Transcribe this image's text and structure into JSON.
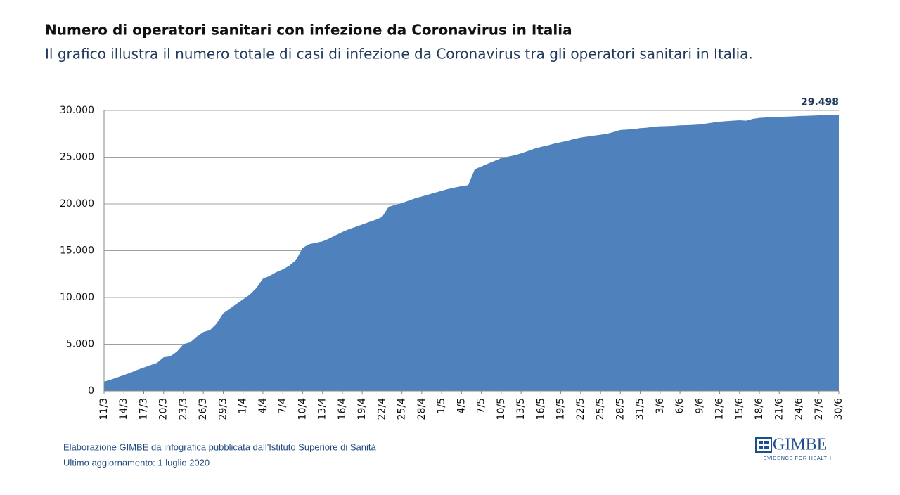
{
  "chart_data": {
    "type": "area",
    "title": "Numero di operatori sanitari con infezione da Coronavirus in Italia",
    "subtitle": "Il grafico illustra il numero totale di casi di infezione da Coronavirus tra gli operatori sanitari in Italia.",
    "categories": [
      "11/3",
      null,
      null,
      "14/3",
      null,
      null,
      "17/3",
      null,
      null,
      "20/3",
      null,
      null,
      "23/3",
      null,
      null,
      "26/3",
      null,
      null,
      "29/3",
      null,
      null,
      "1/4",
      null,
      null,
      "4/4",
      null,
      null,
      "7/4",
      null,
      null,
      "10/4",
      null,
      null,
      "13/4",
      null,
      null,
      "16/4",
      null,
      null,
      "19/4",
      null,
      null,
      "22/4",
      null,
      null,
      "25/4",
      null,
      null,
      "28/4",
      null,
      null,
      "1/5",
      null,
      null,
      "4/5",
      null,
      null,
      "7/5",
      null,
      null,
      "10/5",
      null,
      null,
      "13/5",
      null,
      null,
      "16/5",
      null,
      null,
      "19/5",
      null,
      null,
      "22/5",
      null,
      null,
      "25/5",
      null,
      null,
      "28/5",
      null,
      null,
      "31/5",
      null,
      null,
      "3/6",
      null,
      null,
      "6/6",
      null,
      null,
      "9/6",
      null,
      null,
      "12/6",
      null,
      null,
      "15/6",
      null,
      null,
      "18/6",
      null,
      null,
      "21/6",
      null,
      null,
      "24/6",
      null,
      null,
      "27/6",
      null,
      null,
      "30/6"
    ],
    "values": [
      1000,
      1200,
      1450,
      1700,
      1950,
      2250,
      2500,
      2750,
      3000,
      3600,
      3700,
      4200,
      5000,
      5200,
      5800,
      6300,
      6500,
      7200,
      8300,
      8800,
      9300,
      9800,
      10300,
      11000,
      12000,
      12300,
      12700,
      13000,
      13400,
      14000,
      15300,
      15700,
      15850,
      16000,
      16300,
      16650,
      17000,
      17300,
      17550,
      17800,
      18050,
      18300,
      18600,
      19700,
      19900,
      20100,
      20350,
      20600,
      20800,
      21000,
      21200,
      21400,
      21600,
      21750,
      21900,
      22000,
      23700,
      24000,
      24300,
      24600,
      24900,
      25050,
      25200,
      25400,
      25650,
      25900,
      26100,
      26250,
      26450,
      26600,
      26750,
      26950,
      27100,
      27200,
      27300,
      27400,
      27500,
      27700,
      27900,
      27950,
      28000,
      28100,
      28150,
      28250,
      28300,
      28320,
      28350,
      28400,
      28420,
      28450,
      28500,
      28600,
      28700,
      28800,
      28850,
      28900,
      28950,
      28900,
      29100,
      29200,
      29250,
      29280,
      29300,
      29330,
      29360,
      29400,
      29420,
      29450,
      29470,
      29480,
      29490,
      29498
    ],
    "value_labels": [
      null,
      null,
      null,
      null,
      null,
      null,
      null,
      null,
      null,
      null,
      null,
      null,
      null,
      null,
      null,
      null,
      null,
      null,
      null,
      null,
      null,
      null,
      null,
      null,
      null,
      null,
      null,
      null,
      null,
      null,
      null,
      null,
      null,
      null,
      null,
      null,
      null,
      null,
      null,
      null,
      null,
      null,
      null,
      null,
      null,
      null,
      null,
      null,
      null,
      null,
      null,
      null,
      null,
      null,
      null,
      null,
      null,
      null,
      null,
      null,
      null,
      null,
      null,
      null,
      null,
      null,
      null,
      null,
      null,
      null,
      null,
      null,
      null,
      null,
      null,
      null,
      null,
      null,
      null,
      null,
      null,
      null,
      null,
      null,
      null,
      null,
      null,
      null,
      null,
      null,
      null,
      null,
      null,
      null,
      null,
      null,
      null,
      null,
      null,
      null,
      null,
      null,
      null,
      null,
      null,
      null,
      null,
      null,
      null,
      null,
      null,
      "29.498"
    ],
    "color": "#4f81bd",
    "ylim": [
      0,
      30000
    ],
    "yticks": [
      0,
      {
        "value": 5000,
        "label": "5.000"
      },
      {
        "value": 10000,
        "label": "10.000"
      },
      {
        "value": 15000,
        "label": "15.000"
      },
      {
        "value": 20000,
        "label": "20.000"
      },
      {
        "value": 25000,
        "label": "25.000"
      },
      {
        "value": 30000,
        "label": "30.000"
      }
    ],
    "grid": true
  },
  "footer": {
    "source": "Elaborazione GIMBE da infografica pubblicata dall'Istituto Superiore di Sanità",
    "updated": "Ultimo aggiornamento: 1 luglio 2020",
    "logo": "GIMBE",
    "tagline": "EVIDENCE FOR HEALTH"
  }
}
